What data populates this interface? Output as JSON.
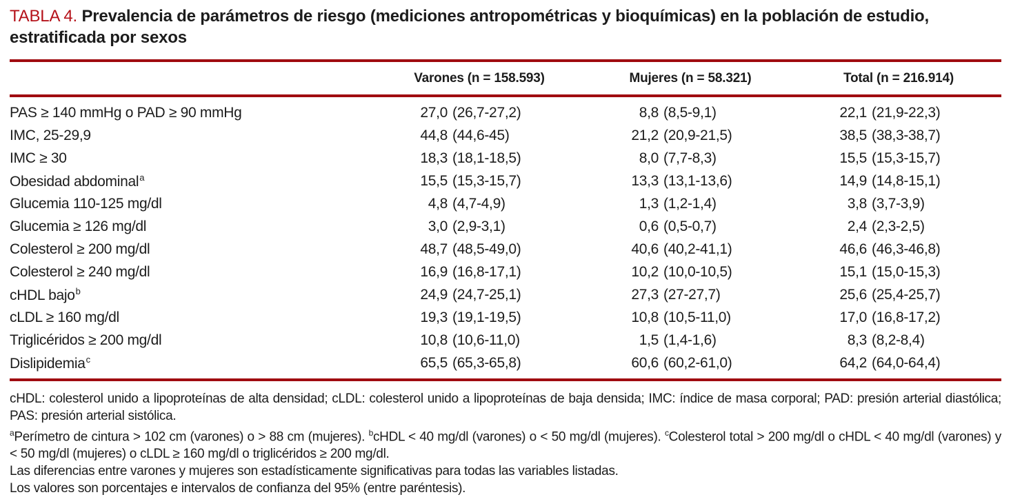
{
  "title": {
    "label": "TABLA 4.",
    "text": "Prevalencia de parámetros de riesgo (mediciones antropométricas y bioquímicas) en la población de estudio, estratificada por sexos"
  },
  "colors": {
    "rule_red": "#a00b10",
    "title_red": "#b5121a"
  },
  "table": {
    "columns": [
      "Varones (n = 158.593)",
      "Mujeres (n = 58.321)",
      "Total (n = 216.914)"
    ],
    "rows": [
      {
        "label": "PAS ≥ 140 mmHg o PAD ≥ 90 mmHg",
        "sup": "",
        "varones": {
          "value": "27,0",
          "ci": "(26,7-27,2)"
        },
        "mujeres": {
          "value": "8,8",
          "ci": "(8,5-9,1)"
        },
        "total": {
          "value": "22,1",
          "ci": "(21,9-22,3)"
        }
      },
      {
        "label": "IMC, 25-29,9",
        "sup": "",
        "varones": {
          "value": "44,8",
          "ci": "(44,6-45)"
        },
        "mujeres": {
          "value": "21,2",
          "ci": "(20,9-21,5)"
        },
        "total": {
          "value": "38,5",
          "ci": "(38,3-38,7)"
        }
      },
      {
        "label": "IMC ≥ 30",
        "sup": "",
        "varones": {
          "value": "18,3",
          "ci": "(18,1-18,5)"
        },
        "mujeres": {
          "value": "8,0",
          "ci": "(7,7-8,3)"
        },
        "total": {
          "value": "15,5",
          "ci": "(15,3-15,7)"
        }
      },
      {
        "label": "Obesidad abdominal",
        "sup": "a",
        "varones": {
          "value": "15,5",
          "ci": "(15,3-15,7)"
        },
        "mujeres": {
          "value": "13,3",
          "ci": "(13,1-13,6)"
        },
        "total": {
          "value": "14,9",
          "ci": "(14,8-15,1)"
        }
      },
      {
        "label": "Glucemia 110-125 mg/dl",
        "sup": "",
        "varones": {
          "value": "4,8",
          "ci": "(4,7-4,9)"
        },
        "mujeres": {
          "value": "1,3",
          "ci": "(1,2-1,4)"
        },
        "total": {
          "value": "3,8",
          "ci": "(3,7-3,9)"
        }
      },
      {
        "label": "Glucemia ≥ 126 mg/dl",
        "sup": "",
        "varones": {
          "value": "3,0",
          "ci": "(2,9-3,1)"
        },
        "mujeres": {
          "value": "0,6",
          "ci": "(0,5-0,7)"
        },
        "total": {
          "value": "2,4",
          "ci": "(2,3-2,5)"
        }
      },
      {
        "label": "Colesterol ≥ 200 mg/dl",
        "sup": "",
        "varones": {
          "value": "48,7",
          "ci": "(48,5-49,0)"
        },
        "mujeres": {
          "value": "40,6",
          "ci": "(40,2-41,1)"
        },
        "total": {
          "value": "46,6",
          "ci": "(46,3-46,8)"
        }
      },
      {
        "label": "Colesterol ≥ 240 mg/dl",
        "sup": "",
        "varones": {
          "value": "16,9",
          "ci": "(16,8-17,1)"
        },
        "mujeres": {
          "value": "10,2",
          "ci": "(10,0-10,5)"
        },
        "total": {
          "value": "15,1",
          "ci": "(15,0-15,3)"
        }
      },
      {
        "label": "cHDL bajo",
        "sup": "b",
        "varones": {
          "value": "24,9",
          "ci": "(24,7-25,1)"
        },
        "mujeres": {
          "value": "27,3",
          "ci": "(27-27,7)"
        },
        "total": {
          "value": "25,6",
          "ci": "(25,4-25,7)"
        }
      },
      {
        "label": "cLDL ≥ 160 mg/dl",
        "sup": "",
        "varones": {
          "value": "19,3",
          "ci": "(19,1-19,5)"
        },
        "mujeres": {
          "value": "10,8",
          "ci": "(10,5-11,0)"
        },
        "total": {
          "value": "17,0",
          "ci": "(16,8-17,2)"
        }
      },
      {
        "label": "Triglicéridos ≥ 200 mg/dl",
        "sup": "",
        "varones": {
          "value": "10,8",
          "ci": "(10,6-11,0)"
        },
        "mujeres": {
          "value": "1,5",
          "ci": "(1,4-1,6)"
        },
        "total": {
          "value": "8,3",
          "ci": "(8,2-8,4)"
        }
      },
      {
        "label": "Dislipidemia",
        "sup": "c",
        "varones": {
          "value": "65,5",
          "ci": "(65,3-65,8)"
        },
        "mujeres": {
          "value": "60,6",
          "ci": "(60,2-61,0)"
        },
        "total": {
          "value": "64,2",
          "ci": "(64,0-64,4)"
        }
      }
    ]
  },
  "footnotes": {
    "abbreviations": "cHDL: colesterol unido a lipoproteínas de alta densidad; cLDL: colesterol unido a lipoproteínas de baja densida; IMC: índice de masa corporal; PAD: presión arterial diastólica; PAS: presión arterial sistólica.",
    "definitions": {
      "a_sup": "a",
      "a_text": "Perímetro de cintura > 102 cm (varones) o > 88 cm (mujeres). ",
      "b_sup": "b",
      "b_text": "cHDL < 40 mg/dl (varones) o < 50 mg/dl (mujeres). ",
      "c_sup": "c",
      "c_text": "Colesterol total > 200 mg/dl o cHDL < 40 mg/dl (varones) y < 50 mg/dl (mujeres) o cLDL ≥ 160 mg/dl o triglicéridos ≥ 200 mg/dl."
    },
    "significance": "Las diferencias entre varones y mujeres son estadísticamente significativas para todas las variables listadas.",
    "values_note": "Los valores son porcentajes e intervalos de confianza del 95% (entre paréntesis)."
  }
}
